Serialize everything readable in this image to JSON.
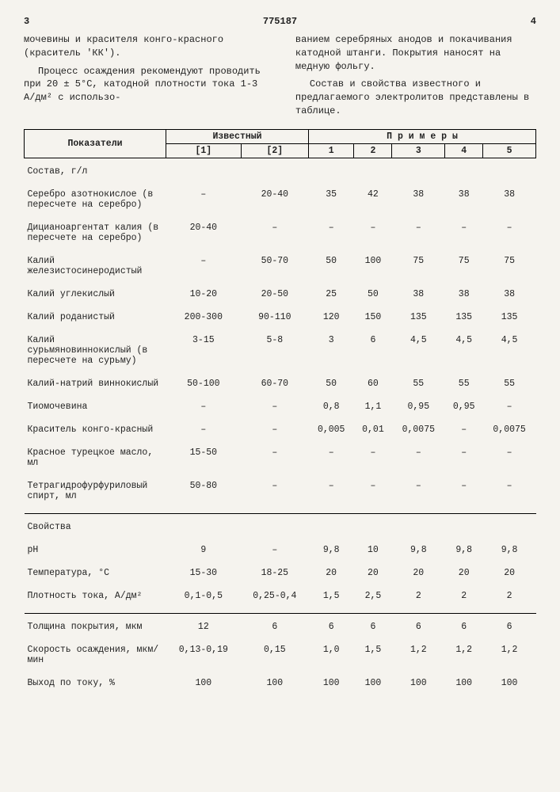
{
  "header": {
    "leftPage": "3",
    "docNumber": "775187",
    "rightPage": "4"
  },
  "leftCol": {
    "p1": "мочевины и красителя конго-красного (краситель 'КК').",
    "p2": "Процесс осаждения рекомендуют проводить при 20 ± 5°С, катодной плотности тока 1-3 А/дм² с использо-"
  },
  "rightCol": {
    "p1": "ванием серебряных анодов и покачивания катодной штанги. Покрытия наносят на медную фольгу.",
    "p2": "Состав и свойства известного и предлагаемого электролитов представлены в таблице."
  },
  "table": {
    "head": {
      "param": "Показатели",
      "known": "Известный",
      "examples": "П р и м е р ы",
      "k1": "[1]",
      "k2": "[2]",
      "e1": "1",
      "e2": "2",
      "e3": "3",
      "e4": "4",
      "e5": "5"
    },
    "rows": [
      {
        "label": "Состав, г/л",
        "v": [
          "",
          "",
          "",
          "",
          "",
          "",
          ""
        ],
        "section": true
      },
      {
        "label": "Серебро азотнокислое (в пересчете на серебро)",
        "v": [
          "–",
          "20-40",
          "35",
          "42",
          "38",
          "38",
          "38"
        ]
      },
      {
        "label": "Дицианоаргентат калия (в пересчете на серебро)",
        "v": [
          "20-40",
          "–",
          "–",
          "–",
          "–",
          "–",
          "–"
        ]
      },
      {
        "label": "Калий железистосинеродистый",
        "v": [
          "–",
          "50-70",
          "50",
          "100",
          "75",
          "75",
          "75"
        ]
      },
      {
        "label": "Калий углекислый",
        "v": [
          "10-20",
          "20-50",
          "25",
          "50",
          "38",
          "38",
          "38"
        ]
      },
      {
        "label": "Калий роданистый",
        "v": [
          "200-300",
          "90-110",
          "120",
          "150",
          "135",
          "135",
          "135"
        ]
      },
      {
        "label": "Калий сурьмяновиннокислый (в пересчете на сурьму)",
        "v": [
          "3-15",
          "5-8",
          "3",
          "6",
          "4,5",
          "4,5",
          "4,5"
        ]
      },
      {
        "label": "Калий-натрий виннокислый",
        "v": [
          "50-100",
          "60-70",
          "50",
          "60",
          "55",
          "55",
          "55"
        ]
      },
      {
        "label": "Тиомочевина",
        "v": [
          "–",
          "–",
          "0,8",
          "1,1",
          "0,95",
          "0,95",
          "–"
        ]
      },
      {
        "label": "Краситель конго-красный",
        "v": [
          "–",
          "–",
          "0,005",
          "0,01",
          "0,0075",
          "–",
          "0,0075"
        ]
      },
      {
        "label": "Красное турецкое масло, мл",
        "v": [
          "15-50",
          "–",
          "–",
          "–",
          "–",
          "–",
          "–"
        ]
      },
      {
        "label": "Тетрагидрофурфуриловый спирт, мл",
        "v": [
          "50-80",
          "–",
          "–",
          "–",
          "–",
          "–",
          "–"
        ]
      }
    ],
    "rows2": [
      {
        "label": "Свойства",
        "v": [
          "",
          "",
          "",
          "",
          "",
          "",
          ""
        ],
        "section": true
      },
      {
        "label": "pH",
        "v": [
          "9",
          "–",
          "9,8",
          "10",
          "9,8",
          "9,8",
          "9,8"
        ]
      },
      {
        "label": "Температура, °С",
        "v": [
          "15-30",
          "18-25",
          "20",
          "20",
          "20",
          "20",
          "20"
        ]
      },
      {
        "label": "Плотность тока, А/дм²",
        "v": [
          "0,1-0,5",
          "0,25-0,4",
          "1,5",
          "2,5",
          "2",
          "2",
          "2"
        ]
      }
    ],
    "rows3": [
      {
        "label": "Толщина покрытия, мкм",
        "v": [
          "12",
          "6",
          "6",
          "6",
          "6",
          "6",
          "6"
        ]
      },
      {
        "label": "Скорость осаждения, мкм/мин",
        "v": [
          "0,13-0,19",
          "0,15",
          "1,0",
          "1,5",
          "1,2",
          "1,2",
          "1,2"
        ]
      },
      {
        "label": "Выход по току, %",
        "v": [
          "100",
          "100",
          "100",
          "100",
          "100",
          "100",
          "100"
        ]
      }
    ]
  }
}
